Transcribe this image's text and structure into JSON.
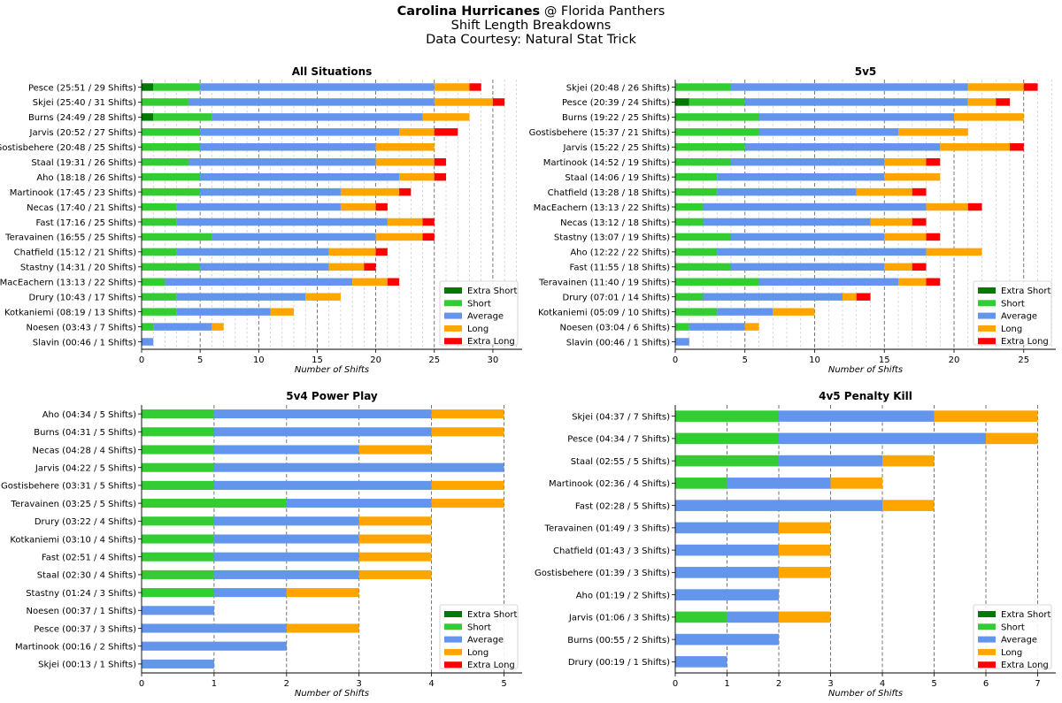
{
  "header": {
    "team": "Carolina Hurricanes",
    "matchup": "@ Florida Panthers",
    "subtitle": "Shift Length Breakdowns",
    "credit": "Data Courtesy: Natural Stat Trick"
  },
  "colors": {
    "Extra Short": "#007a00",
    "Short": "#33cc33",
    "Average": "#6495ed",
    "Long": "#ffa500",
    "Extra Long": "#ff0000"
  },
  "chart_data": [
    {
      "type": "bar",
      "orientation": "horizontal",
      "stacked": true,
      "title": "All Situations",
      "xlabel": "Number of Shifts",
      "xlim": [
        0,
        32.5
      ],
      "xticks": [
        0,
        5,
        10,
        15,
        20,
        25,
        30
      ],
      "grid": "vertical",
      "legend": "bottom-right",
      "series_names": [
        "Extra Short",
        "Short",
        "Average",
        "Long",
        "Extra Long"
      ],
      "categories": [
        "Pesce (25:51 / 29 Shifts)",
        "Skjei (25:40 / 31 Shifts)",
        "Burns (24:49 / 28 Shifts)",
        "Jarvis (20:52 / 27 Shifts)",
        "Gostisbehere (20:48 / 25 Shifts)",
        "Staal (19:31 / 26 Shifts)",
        "Aho (18:18 / 26 Shifts)",
        "Martinook (17:45 / 23 Shifts)",
        "Necas (17:40 / 21 Shifts)",
        "Fast (17:16 / 25 Shifts)",
        "Teravainen (16:55 / 25 Shifts)",
        "Chatfield (15:12 / 21 Shifts)",
        "Stastny (14:31 / 20 Shifts)",
        "MacEachern (13:13 / 22 Shifts)",
        "Drury (10:43 / 17 Shifts)",
        "Kotkaniemi (08:19 / 13 Shifts)",
        "Noesen (03:43 / 7 Shifts)",
        "Slavin (00:46 / 1 Shifts)"
      ],
      "values": [
        [
          1,
          4,
          20,
          3,
          1
        ],
        [
          0,
          4,
          21,
          5,
          1
        ],
        [
          1,
          5,
          18,
          4,
          0
        ],
        [
          0,
          5,
          17,
          3,
          2
        ],
        [
          0,
          5,
          15,
          5,
          0
        ],
        [
          0,
          4,
          16,
          5,
          1
        ],
        [
          0,
          5,
          17,
          3,
          1
        ],
        [
          0,
          5,
          12,
          5,
          1
        ],
        [
          0,
          3,
          14,
          3,
          1
        ],
        [
          0,
          3,
          18,
          3,
          1
        ],
        [
          0,
          6,
          14,
          4,
          1
        ],
        [
          0,
          3,
          13,
          4,
          1
        ],
        [
          0,
          5,
          11,
          3,
          1
        ],
        [
          0,
          2,
          16,
          3,
          1
        ],
        [
          0,
          3,
          11,
          3,
          0
        ],
        [
          0,
          3,
          8,
          2,
          0
        ],
        [
          0,
          1,
          5,
          1,
          0
        ],
        [
          0,
          0,
          1,
          0,
          0
        ]
      ]
    },
    {
      "type": "bar",
      "orientation": "horizontal",
      "stacked": true,
      "title": "5v5",
      "xlabel": "Number of Shifts",
      "xlim": [
        0,
        27.3
      ],
      "xticks": [
        0,
        5,
        10,
        15,
        20,
        25
      ],
      "grid": "vertical",
      "legend": "bottom-right",
      "series_names": [
        "Extra Short",
        "Short",
        "Average",
        "Long",
        "Extra Long"
      ],
      "categories": [
        "Skjei (20:48 / 26 Shifts)",
        "Pesce (20:39 / 24 Shifts)",
        "Burns (19:22 / 25 Shifts)",
        "Gostisbehere (15:37 / 21 Shifts)",
        "Jarvis (15:22 / 25 Shifts)",
        "Martinook (14:52 / 19 Shifts)",
        "Staal (14:06 / 19 Shifts)",
        "Chatfield (13:28 / 18 Shifts)",
        "MacEachern (13:13 / 22 Shifts)",
        "Necas (13:12 / 18 Shifts)",
        "Stastny (13:07 / 19 Shifts)",
        "Aho (12:22 / 22 Shifts)",
        "Fast (11:55 / 18 Shifts)",
        "Teravainen (11:40 / 19 Shifts)",
        "Drury (07:01 / 14 Shifts)",
        "Kotkaniemi (05:09 / 10 Shifts)",
        "Noesen (03:04 / 6 Shifts)",
        "Slavin (00:46 / 1 Shifts)"
      ],
      "values": [
        [
          0,
          4,
          17,
          4,
          1
        ],
        [
          1,
          4,
          16,
          2,
          1
        ],
        [
          0,
          6,
          14,
          5,
          0
        ],
        [
          0,
          6,
          10,
          5,
          0
        ],
        [
          0,
          5,
          14,
          5,
          1
        ],
        [
          0,
          4,
          11,
          3,
          1
        ],
        [
          0,
          3,
          12,
          4,
          0
        ],
        [
          0,
          3,
          10,
          4,
          1
        ],
        [
          0,
          2,
          16,
          3,
          1
        ],
        [
          0,
          2,
          12,
          3,
          1
        ],
        [
          0,
          4,
          11,
          3,
          1
        ],
        [
          0,
          3,
          15,
          4,
          0
        ],
        [
          0,
          4,
          11,
          2,
          1
        ],
        [
          0,
          6,
          10,
          2,
          1
        ],
        [
          0,
          2,
          10,
          1,
          1
        ],
        [
          0,
          3,
          4,
          3,
          0
        ],
        [
          0,
          1,
          4,
          1,
          0
        ],
        [
          0,
          0,
          1,
          0,
          0
        ]
      ]
    },
    {
      "type": "bar",
      "orientation": "horizontal",
      "stacked": true,
      "title": "5v4 Power Play",
      "xlabel": "Number of Shifts",
      "xlim": [
        0,
        5.25
      ],
      "xticks": [
        0,
        1,
        2,
        3,
        4,
        5
      ],
      "grid": "vertical",
      "legend": "bottom-right",
      "series_names": [
        "Extra Short",
        "Short",
        "Average",
        "Long",
        "Extra Long"
      ],
      "categories": [
        "Aho (04:34 / 5 Shifts)",
        "Burns (04:31 / 5 Shifts)",
        "Necas (04:28 / 4 Shifts)",
        "Jarvis (04:22 / 5 Shifts)",
        "Gostisbehere (03:31 / 5 Shifts)",
        "Teravainen (03:25 / 5 Shifts)",
        "Drury (03:22 / 4 Shifts)",
        "Kotkaniemi (03:10 / 4 Shifts)",
        "Fast (02:51 / 4 Shifts)",
        "Staal (02:30 / 4 Shifts)",
        "Stastny (01:24 / 3 Shifts)",
        "Noesen (00:37 / 1 Shifts)",
        "Pesce (00:37 / 3 Shifts)",
        "Martinook (00:16 / 2 Shifts)",
        "Skjei (00:13 / 1 Shifts)"
      ],
      "values": [
        [
          0,
          1,
          3,
          1,
          0
        ],
        [
          0,
          1,
          3,
          1,
          0
        ],
        [
          0,
          1,
          2,
          1,
          0
        ],
        [
          0,
          1,
          4,
          0,
          0
        ],
        [
          0,
          1,
          3,
          1,
          0
        ],
        [
          0,
          2,
          2,
          1,
          0
        ],
        [
          0,
          1,
          2,
          1,
          0
        ],
        [
          0,
          1,
          2,
          1,
          0
        ],
        [
          0,
          1,
          2,
          1,
          0
        ],
        [
          0,
          1,
          2,
          1,
          0
        ],
        [
          0,
          1,
          1,
          1,
          0
        ],
        [
          0,
          0,
          1,
          0,
          0
        ],
        [
          0,
          0,
          2,
          1,
          0
        ],
        [
          0,
          0,
          2,
          0,
          0
        ],
        [
          0,
          0,
          1,
          0,
          0
        ]
      ]
    },
    {
      "type": "bar",
      "orientation": "horizontal",
      "stacked": true,
      "title": "4v5 Penalty Kill",
      "xlabel": "Number of Shifts",
      "xlim": [
        0,
        7.35
      ],
      "xticks": [
        0,
        1,
        2,
        3,
        4,
        5,
        6,
        7
      ],
      "grid": "vertical",
      "legend": "bottom-right",
      "series_names": [
        "Extra Short",
        "Short",
        "Average",
        "Long",
        "Extra Long"
      ],
      "categories": [
        "Skjei (04:37 / 7 Shifts)",
        "Pesce (04:34 / 7 Shifts)",
        "Staal (02:55 / 5 Shifts)",
        "Martinook (02:36 / 4 Shifts)",
        "Fast (02:28 / 5 Shifts)",
        "Teravainen (01:49 / 3 Shifts)",
        "Chatfield (01:43 / 3 Shifts)",
        "Gostisbehere (01:39 / 3 Shifts)",
        "Aho (01:19 / 2 Shifts)",
        "Jarvis (01:06 / 3 Shifts)",
        "Burns (00:55 / 2 Shifts)",
        "Drury (00:19 / 1 Shifts)"
      ],
      "values": [
        [
          0,
          2,
          3,
          2,
          0
        ],
        [
          0,
          2,
          4,
          1,
          0
        ],
        [
          0,
          2,
          2,
          1,
          0
        ],
        [
          0,
          1,
          2,
          1,
          0
        ],
        [
          0,
          0,
          4,
          1,
          0
        ],
        [
          0,
          0,
          2,
          1,
          0
        ],
        [
          0,
          0,
          2,
          1,
          0
        ],
        [
          0,
          0,
          2,
          1,
          0
        ],
        [
          0,
          0,
          2,
          0,
          0
        ],
        [
          0,
          1,
          1,
          1,
          0
        ],
        [
          0,
          0,
          2,
          0,
          0
        ],
        [
          0,
          0,
          1,
          0,
          0
        ]
      ]
    }
  ]
}
